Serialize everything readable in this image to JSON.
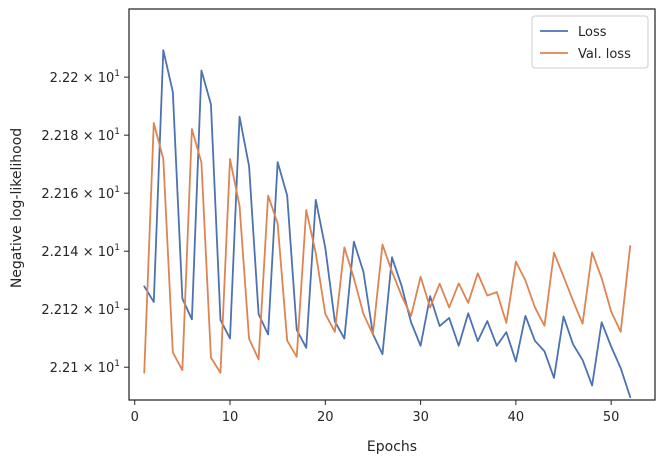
{
  "chart_data": {
    "type": "line",
    "xlabel": "Epochs",
    "ylabel": "Negative log-likelihood",
    "xlim": [
      -0.6,
      54.6
    ],
    "ylim": [
      22.0887,
      22.2235
    ],
    "x_ticks": [
      0,
      10,
      20,
      30,
      40,
      50
    ],
    "x_tick_labels": [
      "0",
      "10",
      "20",
      "30",
      "40",
      "50"
    ],
    "y_ticks": [
      22.1,
      22.12,
      22.14,
      22.16,
      22.18,
      22.2
    ],
    "y_tick_mantissas": [
      "2.21",
      "2.212",
      "2.214",
      "2.216",
      "2.218",
      "2.22"
    ],
    "y_tick_base": "10",
    "y_tick_exp": "1",
    "grid": false,
    "legend_position": "top-right",
    "x": [
      1,
      2,
      3,
      4,
      5,
      6,
      7,
      8,
      9,
      10,
      11,
      12,
      13,
      14,
      15,
      16,
      17,
      18,
      19,
      20,
      21,
      22,
      23,
      24,
      25,
      26,
      27,
      28,
      29,
      30,
      31,
      32,
      33,
      34,
      35,
      36,
      37,
      38,
      39,
      40,
      41,
      42,
      43,
      44,
      45,
      46,
      47,
      48,
      49,
      50,
      51,
      52
    ],
    "series": [
      {
        "name": "Loss",
        "color": "#4c72b0",
        "values": [
          22.1279,
          22.1225,
          22.2093,
          22.1949,
          22.1237,
          22.1165,
          22.2023,
          22.1906,
          22.1163,
          22.1099,
          22.1864,
          22.1693,
          22.1183,
          22.1113,
          22.1707,
          22.1592,
          22.1129,
          22.1067,
          22.1577,
          22.1412,
          22.1158,
          22.1099,
          22.1433,
          22.1329,
          22.1114,
          22.1045,
          22.1379,
          22.1281,
          22.1155,
          22.1074,
          22.1245,
          22.1142,
          22.117,
          22.1074,
          22.1186,
          22.109,
          22.1159,
          22.1074,
          22.1121,
          22.102,
          22.1177,
          22.1091,
          22.1055,
          22.0963,
          22.1175,
          22.1079,
          22.1025,
          22.0937,
          22.1155,
          22.1071,
          22.0997,
          22.0897
        ]
      },
      {
        "name": "Val. loss",
        "color": "#dd8452",
        "values": [
          22.0981,
          22.1842,
          22.1718,
          22.1051,
          22.099,
          22.1821,
          22.1706,
          22.1033,
          22.0981,
          22.1718,
          22.1556,
          22.1098,
          22.1027,
          22.1592,
          22.1495,
          22.1092,
          22.1036,
          22.1542,
          22.1393,
          22.1184,
          22.1122,
          22.1413,
          22.1307,
          22.1184,
          22.1113,
          22.1423,
          22.1329,
          22.1247,
          22.1177,
          22.1312,
          22.1206,
          22.1288,
          22.1206,
          22.1289,
          22.1222,
          22.1324,
          22.1247,
          22.1259,
          22.1153,
          22.1364,
          22.1299,
          22.1206,
          22.1143,
          22.1395,
          22.1313,
          22.1229,
          22.115,
          22.1396,
          22.1307,
          22.1192,
          22.1122,
          22.1418
        ]
      }
    ]
  }
}
